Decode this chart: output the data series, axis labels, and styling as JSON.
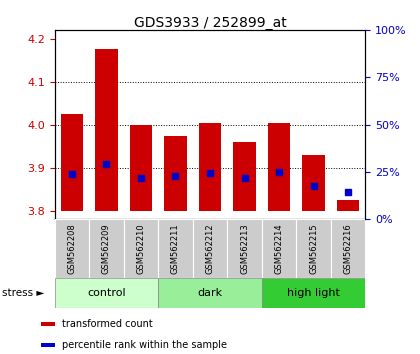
{
  "title": "GDS3933 / 252899_at",
  "samples": [
    "GSM562208",
    "GSM562209",
    "GSM562210",
    "GSM562211",
    "GSM562212",
    "GSM562213",
    "GSM562214",
    "GSM562215",
    "GSM562216"
  ],
  "red_tops": [
    4.025,
    4.175,
    4.0,
    3.975,
    4.003,
    3.96,
    4.003,
    3.93,
    3.825
  ],
  "blue_vals": [
    3.885,
    3.91,
    3.876,
    3.882,
    3.888,
    3.876,
    3.89,
    3.858,
    3.843
  ],
  "bar_bottom": 3.8,
  "ylim_left": [
    3.78,
    4.22
  ],
  "ylim_right": [
    0,
    100
  ],
  "yticks_left": [
    3.8,
    3.9,
    4.0,
    4.1,
    4.2
  ],
  "yticks_right": [
    0,
    25,
    50,
    75,
    100
  ],
  "ytick_labels_right": [
    "0%",
    "25%",
    "50%",
    "75%",
    "100%"
  ],
  "groups_info": [
    {
      "label": "control",
      "start": 0,
      "end": 2,
      "color": "#ccffcc"
    },
    {
      "label": "dark",
      "start": 3,
      "end": 5,
      "color": "#99ee99"
    },
    {
      "label": "high light",
      "start": 6,
      "end": 8,
      "color": "#33cc33"
    }
  ],
  "bar_color": "#cc0000",
  "blue_color": "#0000cc",
  "bar_width": 0.65,
  "plot_bg": "#ffffff",
  "tick_label_color_left": "#cc0000",
  "tick_label_color_right": "#0000cc",
  "sample_bg": "#cccccc",
  "stress_label": "stress ►",
  "legend_items": [
    {
      "color": "#cc0000",
      "label": "transformed count"
    },
    {
      "color": "#0000cc",
      "label": "percentile rank within the sample"
    }
  ]
}
